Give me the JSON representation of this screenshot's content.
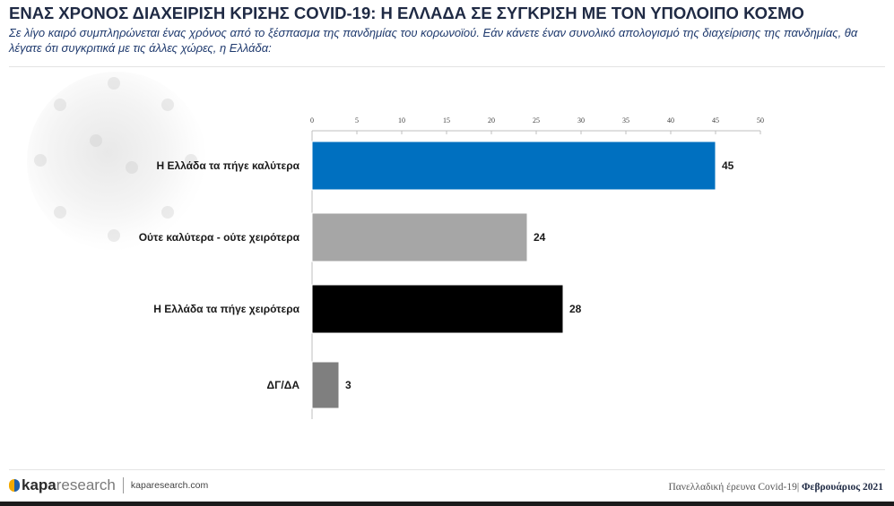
{
  "header": {
    "title": "ΕΝΑΣ ΧΡΟΝΟΣ ΔΙΑΧΕΙΡΙΣΗ ΚΡΙΣΗΣ COVID-19: Η ΕΛΛΑΔΑ ΣΕ ΣΥΓΚΡΙΣΗ ΜΕ ΤΟΝ ΥΠΟΛΟΙΠΟ ΚΟΣΜΟ",
    "subtitle": "Σε λίγο καιρό συμπληρώνεται ένας χρόνος από το ξέσπασμα της πανδημίας του κορωνοϊού. Εάν κάνετε έναν συνολικό απολογισμό της διαχείρισης της πανδημίας, θα λέγατε ότι συγκριτικά με τις άλλες χώρες, η Ελλάδα:"
  },
  "chart_data": {
    "type": "bar",
    "orientation": "horizontal",
    "categories": [
      "Η Ελλάδα τα πήγε καλύτερα",
      "Ούτε καλύτερα - ούτε χειρότερα",
      "Η Ελλάδα τα πήγε χειρότερα",
      "ΔΓ/ΔΑ"
    ],
    "values": [
      45,
      24,
      28,
      3
    ],
    "colors": [
      "#0070c0",
      "#a6a6a6",
      "#000000",
      "#7f7f7f"
    ],
    "xlim": [
      0,
      50
    ],
    "ticks": [
      "0",
      "5",
      "10",
      "15",
      "20",
      "25",
      "30",
      "35",
      "40",
      "45",
      "50"
    ],
    "tick_values": [
      0,
      5,
      10,
      15,
      20,
      25,
      30,
      35,
      40,
      45,
      50
    ],
    "axis_position": "top",
    "grid": false,
    "data_labels": [
      "45",
      "24",
      "28",
      "3"
    ]
  },
  "footer": {
    "logo_kapa": "kapa",
    "logo_research": "research",
    "url": "kaparesearch.com",
    "survey": "Πανελλαδική έρευνα Covid-19|",
    "date": "Φεβρουάριος 2021"
  }
}
